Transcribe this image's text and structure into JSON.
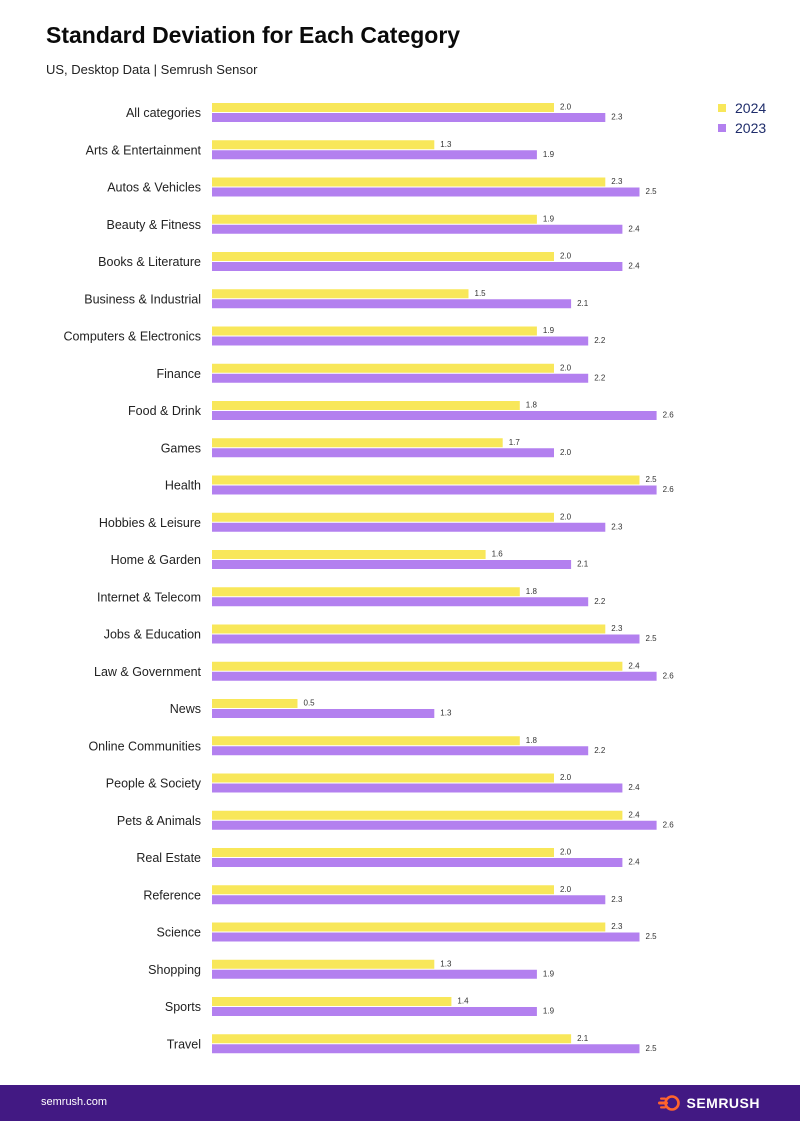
{
  "header": {
    "title": "Standard Deviation for Each Category",
    "subtitle": "US, Desktop Data | Semrush Sensor"
  },
  "footer": {
    "url": "semrush.com",
    "brand": "SEMRUSH"
  },
  "colors": {
    "series_2024": "#f8e75a",
    "series_2023": "#b380ef",
    "footer_bg": "#421983",
    "logo_orange": "#ff642d"
  },
  "chart_data": {
    "type": "bar",
    "orientation": "horizontal",
    "title": "Standard Deviation for Each Category",
    "subtitle": "US, Desktop Data | Semrush Sensor",
    "categories": [
      "All categories",
      "Arts & Entertainment",
      "Autos & Vehicles",
      "Beauty & Fitness",
      "Books & Literature",
      "Business & Industrial",
      "Computers & Electronics",
      "Finance",
      "Food & Drink",
      "Games",
      "Health",
      "Hobbies & Leisure",
      "Home & Garden",
      "Internet & Telecom",
      "Jobs & Education",
      "Law & Government",
      "News",
      "Online Communities",
      "People & Society",
      "Pets & Animals",
      "Real Estate",
      "Reference",
      "Science",
      "Shopping",
      "Sports",
      "Travel"
    ],
    "series": [
      {
        "name": "2024",
        "color": "#f8e75a",
        "values": [
          2.0,
          1.3,
          2.3,
          1.9,
          2.0,
          1.5,
          1.9,
          2.0,
          1.8,
          1.7,
          2.5,
          2.0,
          1.6,
          1.8,
          2.3,
          2.4,
          0.5,
          1.8,
          2.0,
          2.4,
          2.0,
          2.0,
          2.3,
          1.3,
          1.4,
          2.1
        ]
      },
      {
        "name": "2023",
        "color": "#b380ef",
        "values": [
          2.3,
          1.9,
          2.5,
          2.4,
          2.4,
          2.1,
          2.2,
          2.2,
          2.6,
          2.0,
          2.6,
          2.3,
          2.1,
          2.2,
          2.5,
          2.6,
          1.3,
          2.2,
          2.4,
          2.6,
          2.4,
          2.3,
          2.5,
          1.9,
          1.9,
          2.5
        ]
      }
    ],
    "xlim": [
      0,
      3.0
    ],
    "grid": false,
    "legend": "top-right",
    "data_labels": true
  }
}
